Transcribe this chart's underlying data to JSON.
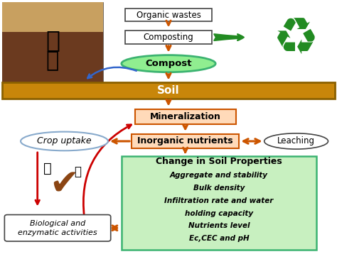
{
  "bg_color": "#ffffff",
  "soil_color": "#C8860A",
  "soil_dark": "#8B6000",
  "compost_fill": "#90EE90",
  "compost_border": "#3CB371",
  "mineralization_fill": "#FFDAB9",
  "inorganic_fill": "#FFDAB9",
  "soil_props_fill": "#C8F0C0",
  "soil_props_border": "#3CB371",
  "box_border": "#444444",
  "leaching_fill": "#ffffff",
  "crop_fill": "#ffffff",
  "crop_border": "#88AACC",
  "bio_fill": "#ffffff",
  "arrow_orange": "#CC5500",
  "arrow_green": "#228B22",
  "arrow_blue": "#3366CC",
  "arrow_red": "#CC0000",
  "organic_wastes_text": "Organic wastes",
  "composting_text": "Composting",
  "compost_text": "Compost",
  "soil_text": "Soil",
  "mineralization_text": "Mineralization",
  "inorganic_text": "Inorganic nutrients",
  "leaching_text": "Leaching",
  "crop_uptake_text": "Crop uptake",
  "bio_line1": "Biological and",
  "bio_line2": "enzymatic activities",
  "soil_props_title": "Change in Soil Properties",
  "soil_props_items": [
    "Aggregate and stability",
    "Bulk density",
    "Infiltration rate and water",
    "holding capacity",
    "Nutrients level",
    "Ec,CEC and pH"
  ],
  "figw": 4.74,
  "figh": 3.72,
  "dpi": 100
}
